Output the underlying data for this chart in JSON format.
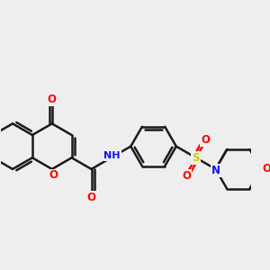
{
  "bg_color": "#eeeeee",
  "bond_color": "#1a1a1a",
  "bond_width": 1.8,
  "atom_colors": {
    "O": "#ff0000",
    "N": "#1010ff",
    "S": "#cccc00",
    "H": "#339999",
    "C": "#1a1a1a"
  },
  "font_size": 8.5,
  "fig_size": [
    3.0,
    3.0
  ],
  "dpi": 100,
  "xlim": [
    -0.5,
    10.5
  ],
  "ylim": [
    -2.5,
    3.5
  ]
}
